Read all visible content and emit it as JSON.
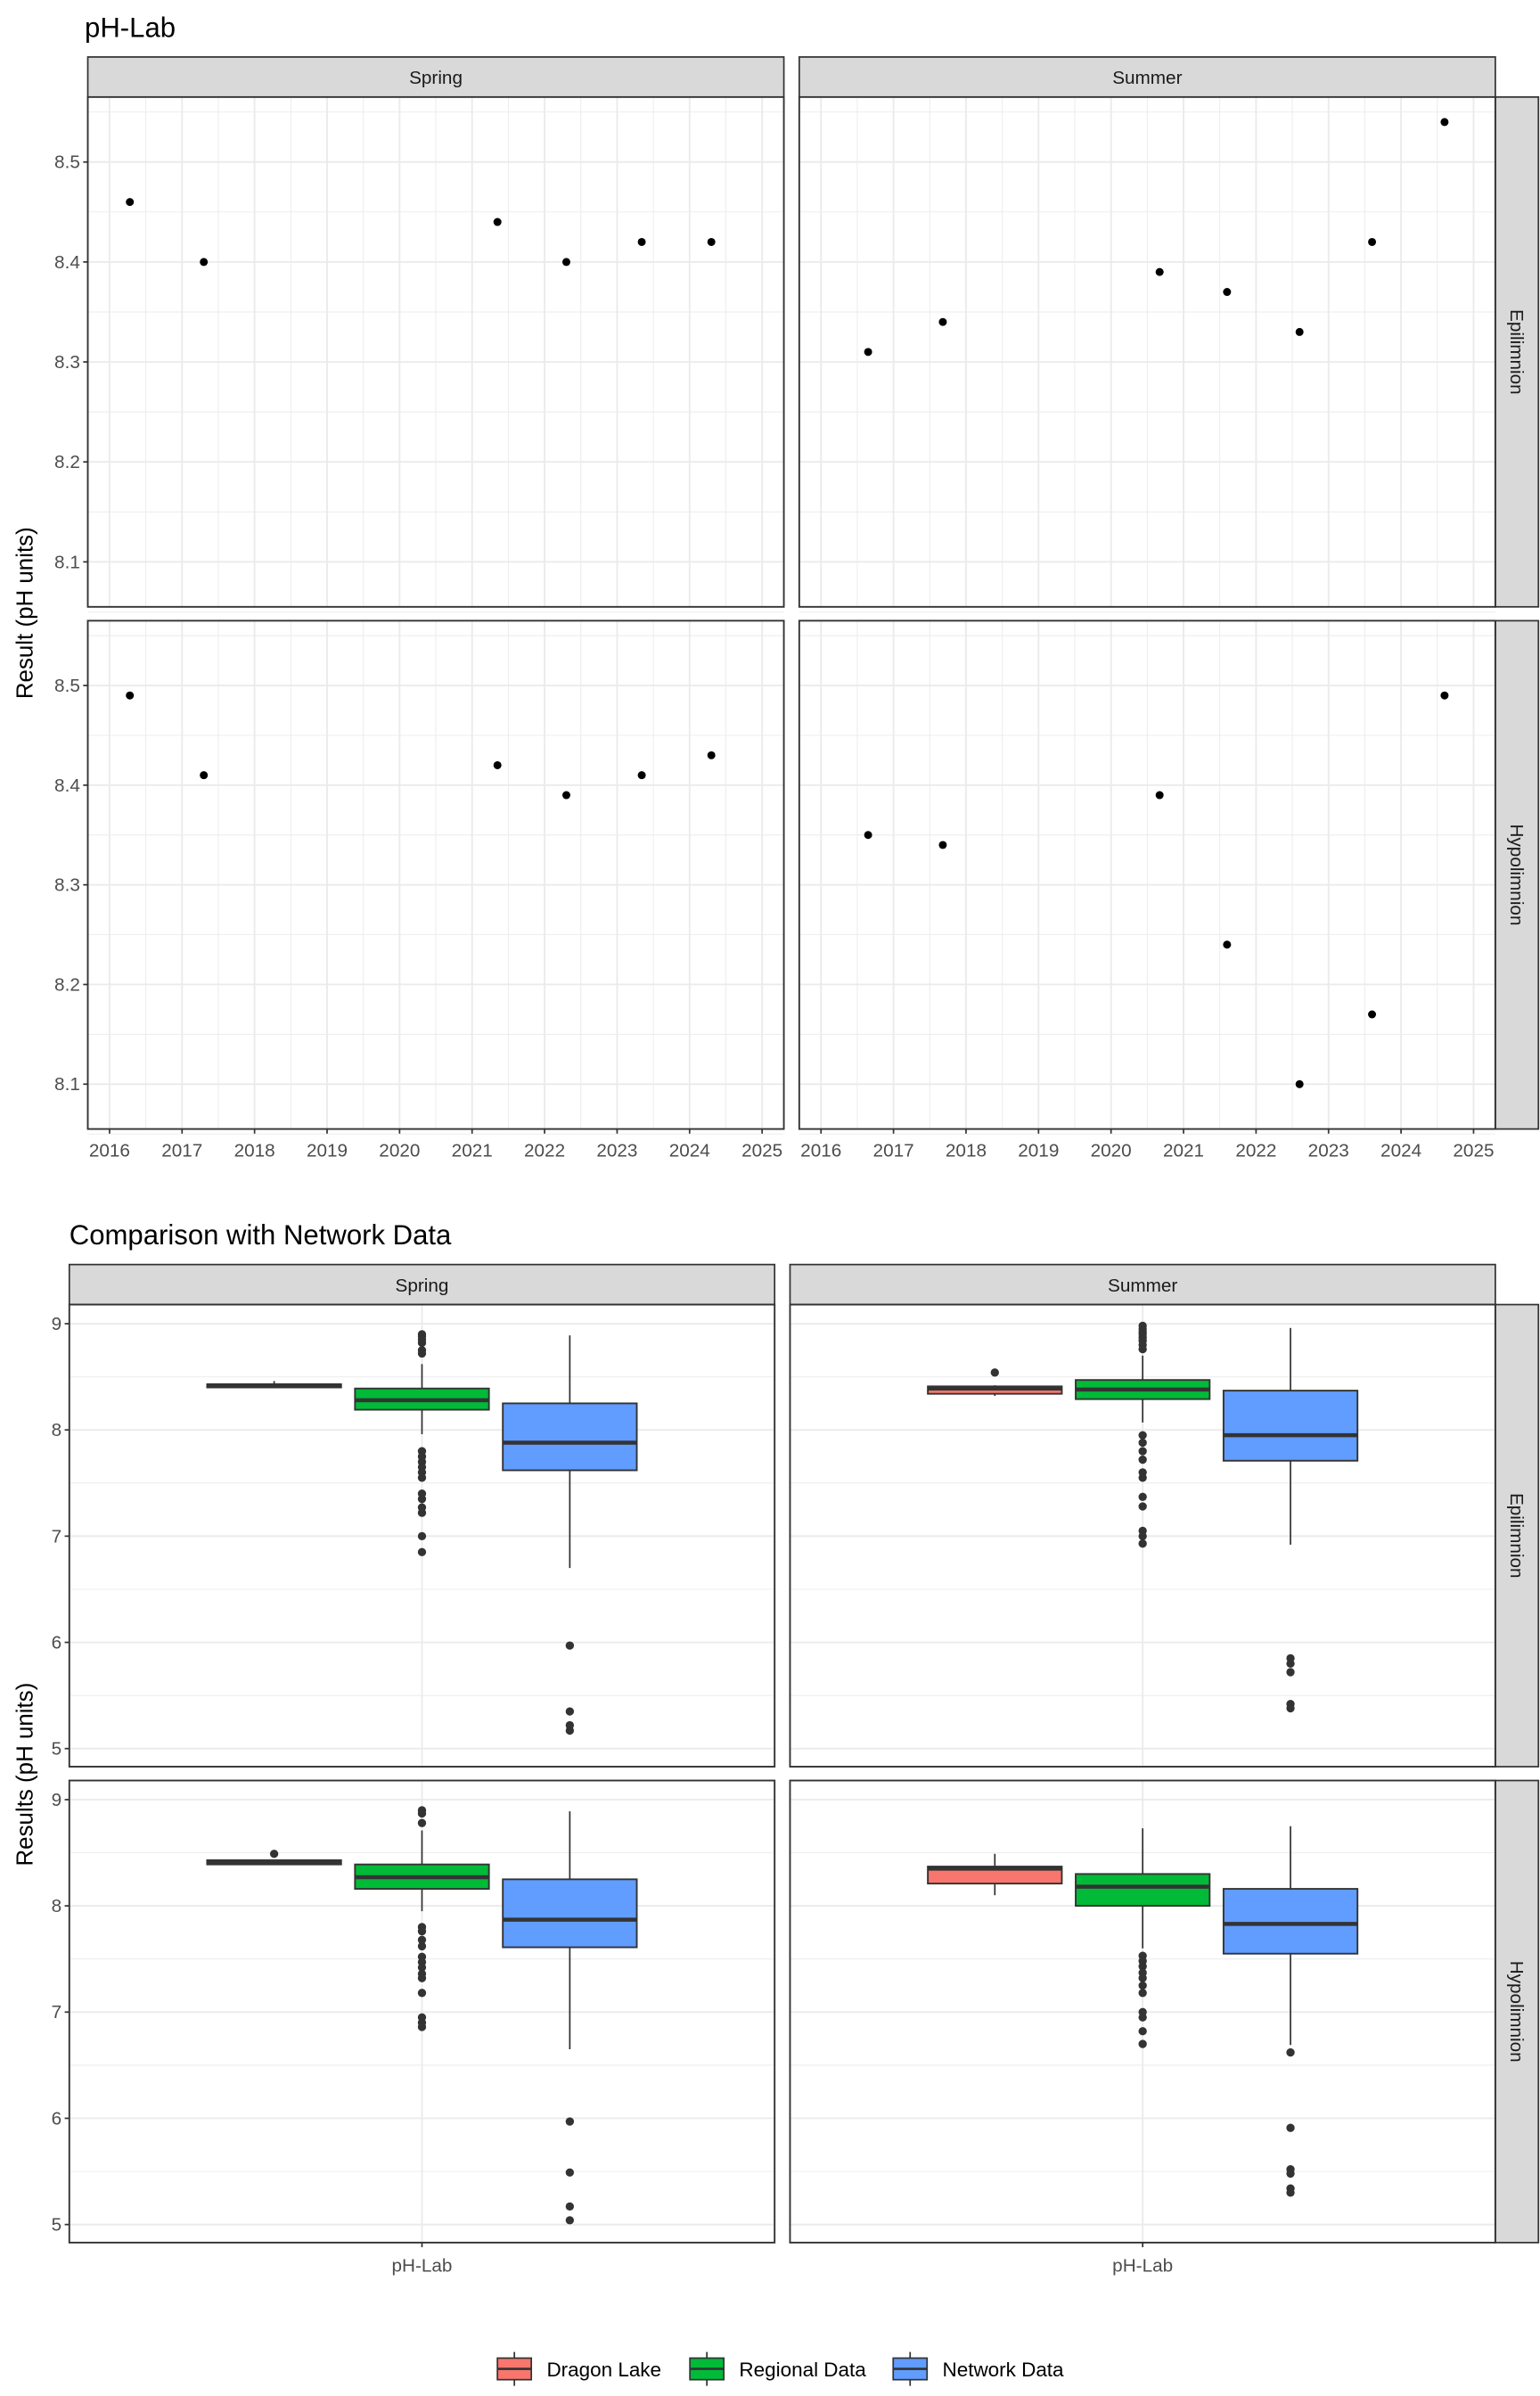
{
  "chart_data": [
    {
      "type": "scatter",
      "title": "pH-Lab",
      "ylabel": "Result (pH units)",
      "xlabel": "",
      "x_ticks": [
        "2016",
        "2017",
        "2018",
        "2019",
        "2020",
        "2021",
        "2022",
        "2023",
        "2024",
        "2025"
      ],
      "y_ticks": [
        "8.1",
        "8.2",
        "8.3",
        "8.4",
        "8.5"
      ],
      "xlim": [
        2015.7,
        2025.3
      ],
      "ylim": [
        8.055,
        8.565
      ],
      "grid": true,
      "columns": [
        "Spring",
        "Summer"
      ],
      "rows": [
        "Epilimnion",
        "Hypolimnion"
      ],
      "panels": [
        {
          "column": "Spring",
          "row": "Epilimnion",
          "x": [
            2016.28,
            2017.3,
            2021.35,
            2022.3,
            2023.34,
            2024.3
          ],
          "y": [
            8.46,
            8.4,
            8.44,
            8.4,
            8.42,
            8.42
          ]
        },
        {
          "column": "Summer",
          "row": "Epilimnion",
          "x": [
            2016.65,
            2017.68,
            2020.67,
            2021.6,
            2022.6,
            2023.6,
            2024.6
          ],
          "y": [
            8.31,
            8.34,
            8.39,
            8.37,
            8.33,
            8.42,
            8.54
          ]
        },
        {
          "column": "Spring",
          "row": "Hypolimnion",
          "x": [
            2016.28,
            2017.3,
            2021.35,
            2022.3,
            2023.34,
            2024.3
          ],
          "y": [
            8.49,
            8.41,
            8.42,
            8.39,
            8.41,
            8.43
          ]
        },
        {
          "column": "Summer",
          "row": "Hypolimnion",
          "x": [
            2016.65,
            2017.68,
            2020.67,
            2021.6,
            2022.6,
            2023.6,
            2024.6
          ],
          "y": [
            8.35,
            8.34,
            8.39,
            8.24,
            8.1,
            8.17,
            8.49
          ]
        }
      ]
    },
    {
      "type": "box",
      "title": "Comparison with Network Data",
      "ylabel": "Results (pH units)",
      "categories": [
        "pH-Lab"
      ],
      "y_ticks": [
        "5",
        "6",
        "7",
        "8",
        "9"
      ],
      "ylim": [
        4.83,
        9.18
      ],
      "grid": true,
      "columns": [
        "Spring",
        "Summer"
      ],
      "rows": [
        "Epilimnion",
        "Hypolimnion"
      ],
      "legend": {
        "position": "bottom",
        "entries": [
          {
            "name": "Dragon Lake",
            "color": "#F8766D"
          },
          {
            "name": "Regional Data",
            "color": "#00BA38"
          },
          {
            "name": "Network Data",
            "color": "#619CFF"
          }
        ]
      },
      "panels": [
        {
          "column": "Spring",
          "row": "Epilimnion",
          "boxes": [
            {
              "series": "Dragon Lake",
              "lo": 8.4,
              "q1": 8.4,
              "med": 8.42,
              "q3": 8.43,
              "hi": 8.46,
              "outliers": []
            },
            {
              "series": "Regional Data",
              "lo": 7.96,
              "q1": 8.19,
              "med": 8.28,
              "q3": 8.39,
              "hi": 8.62,
              "outliers": [
                8.9,
                8.88,
                8.85,
                8.82,
                8.75,
                8.72,
                7.8,
                7.75,
                7.7,
                7.65,
                7.6,
                7.55,
                7.4,
                7.35,
                7.27,
                7.22,
                7.0,
                6.85
              ]
            },
            {
              "series": "Network Data",
              "lo": 6.7,
              "q1": 7.62,
              "med": 7.88,
              "q3": 8.25,
              "hi": 8.89,
              "outliers": [
                5.97,
                5.35,
                5.22,
                5.17
              ]
            }
          ]
        },
        {
          "column": "Summer",
          "row": "Epilimnion",
          "boxes": [
            {
              "series": "Dragon Lake",
              "lo": 8.32,
              "q1": 8.34,
              "med": 8.39,
              "q3": 8.41,
              "hi": 8.42,
              "outliers": [
                8.54
              ]
            },
            {
              "series": "Regional Data",
              "lo": 8.07,
              "q1": 8.29,
              "med": 8.38,
              "q3": 8.47,
              "hi": 8.7,
              "outliers": [
                8.98,
                8.95,
                8.92,
                8.9,
                8.87,
                8.84,
                8.8,
                8.76,
                7.95,
                7.88,
                7.8,
                7.72,
                7.6,
                7.55,
                7.37,
                7.28,
                7.05,
                7.0,
                6.93
              ]
            },
            {
              "series": "Network Data",
              "lo": 6.92,
              "q1": 7.71,
              "med": 7.95,
              "q3": 8.37,
              "hi": 8.96,
              "outliers": [
                5.85,
                5.8,
                5.72,
                5.42,
                5.38
              ]
            }
          ]
        },
        {
          "column": "Spring",
          "row": "Hypolimnion",
          "boxes": [
            {
              "series": "Dragon Lake",
              "lo": 8.39,
              "q1": 8.39,
              "med": 8.41,
              "q3": 8.43,
              "hi": 8.43,
              "outliers": [
                8.49
              ]
            },
            {
              "series": "Regional Data",
              "lo": 7.95,
              "q1": 8.16,
              "med": 8.27,
              "q3": 8.39,
              "hi": 8.71,
              "outliers": [
                8.9,
                8.87,
                8.78,
                7.8,
                7.76,
                7.68,
                7.62,
                7.52,
                7.47,
                7.42,
                7.36,
                7.32,
                7.18,
                6.95,
                6.9,
                6.86
              ]
            },
            {
              "series": "Network Data",
              "lo": 6.65,
              "q1": 7.61,
              "med": 7.87,
              "q3": 8.25,
              "hi": 8.89,
              "outliers": [
                5.97,
                5.49,
                5.17,
                5.04
              ]
            }
          ]
        },
        {
          "column": "Summer",
          "row": "Hypolimnion",
          "boxes": [
            {
              "series": "Dragon Lake",
              "lo": 8.1,
              "q1": 8.21,
              "med": 8.35,
              "q3": 8.37,
              "hi": 8.49,
              "outliers": []
            },
            {
              "series": "Regional Data",
              "lo": 7.6,
              "q1": 8.0,
              "med": 8.18,
              "q3": 8.3,
              "hi": 8.73,
              "outliers": [
                7.53,
                7.48,
                7.43,
                7.37,
                7.32,
                7.25,
                7.18,
                7.0,
                6.95,
                6.82,
                6.7
              ]
            },
            {
              "series": "Network Data",
              "lo": 6.69,
              "q1": 7.55,
              "med": 7.83,
              "q3": 8.16,
              "hi": 8.75,
              "outliers": [
                6.62,
                5.91,
                5.52,
                5.48,
                5.34,
                5.3
              ]
            }
          ]
        }
      ]
    }
  ]
}
